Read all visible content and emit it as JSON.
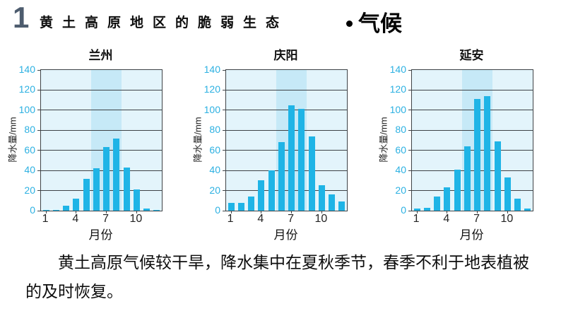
{
  "header": {
    "number": "1",
    "title": "黄土高原地区的脆弱生态",
    "section": "气候"
  },
  "body": {
    "paragraph": "黄土高原气候较干旱，降水集中在夏秋季节，春季不利于地表植被的及时恢复。"
  },
  "colors": {
    "bar": "#1fb4e6",
    "plot_background": "#e3f4fb",
    "highlight_band": "#c6e9f7",
    "gridline": "#3e4347",
    "y_tick_label": "#2db1e2",
    "header_number": "#4d5c6e"
  },
  "chart_data": [
    {
      "type": "bar",
      "title": "兰州",
      "xlabel": "月份",
      "ylabel": "降水量/mm",
      "ylim": [
        0,
        140
      ],
      "yticks": [
        0,
        20,
        40,
        60,
        80,
        100,
        120,
        140
      ],
      "xticks": [
        1,
        4,
        7,
        10
      ],
      "x": [
        1,
        2,
        3,
        4,
        5,
        6,
        7,
        8,
        9,
        10,
        11,
        12
      ],
      "values": [
        1,
        1,
        5,
        12,
        32,
        42,
        63,
        72,
        43,
        21,
        2,
        1
      ],
      "highlight_months": [
        6,
        8
      ],
      "grid": true,
      "legend": "none"
    },
    {
      "type": "bar",
      "title": "庆阳",
      "xlabel": "月份",
      "ylabel": "降水量/mm",
      "ylim": [
        0,
        140
      ],
      "yticks": [
        0,
        20,
        40,
        60,
        80,
        100,
        120,
        140
      ],
      "xticks": [
        1,
        4,
        7,
        10
      ],
      "x": [
        1,
        2,
        3,
        4,
        5,
        6,
        7,
        8,
        9,
        10,
        11,
        12
      ],
      "values": [
        8,
        8,
        14,
        30,
        40,
        68,
        105,
        101,
        74,
        25,
        16,
        9
      ],
      "highlight_months": [
        6,
        8
      ],
      "grid": true,
      "legend": "none"
    },
    {
      "type": "bar",
      "title": "延安",
      "xlabel": "月份",
      "ylabel": "降水量/mm",
      "ylim": [
        0,
        140
      ],
      "yticks": [
        0,
        20,
        40,
        60,
        80,
        100,
        120,
        140
      ],
      "xticks": [
        1,
        4,
        7,
        10
      ],
      "x": [
        1,
        2,
        3,
        4,
        5,
        6,
        7,
        8,
        9,
        10,
        11,
        12
      ],
      "values": [
        2,
        3,
        14,
        23,
        41,
        64,
        111,
        114,
        69,
        33,
        12,
        2
      ],
      "highlight_months": [
        6,
        8
      ],
      "grid": true,
      "legend": "none"
    }
  ]
}
